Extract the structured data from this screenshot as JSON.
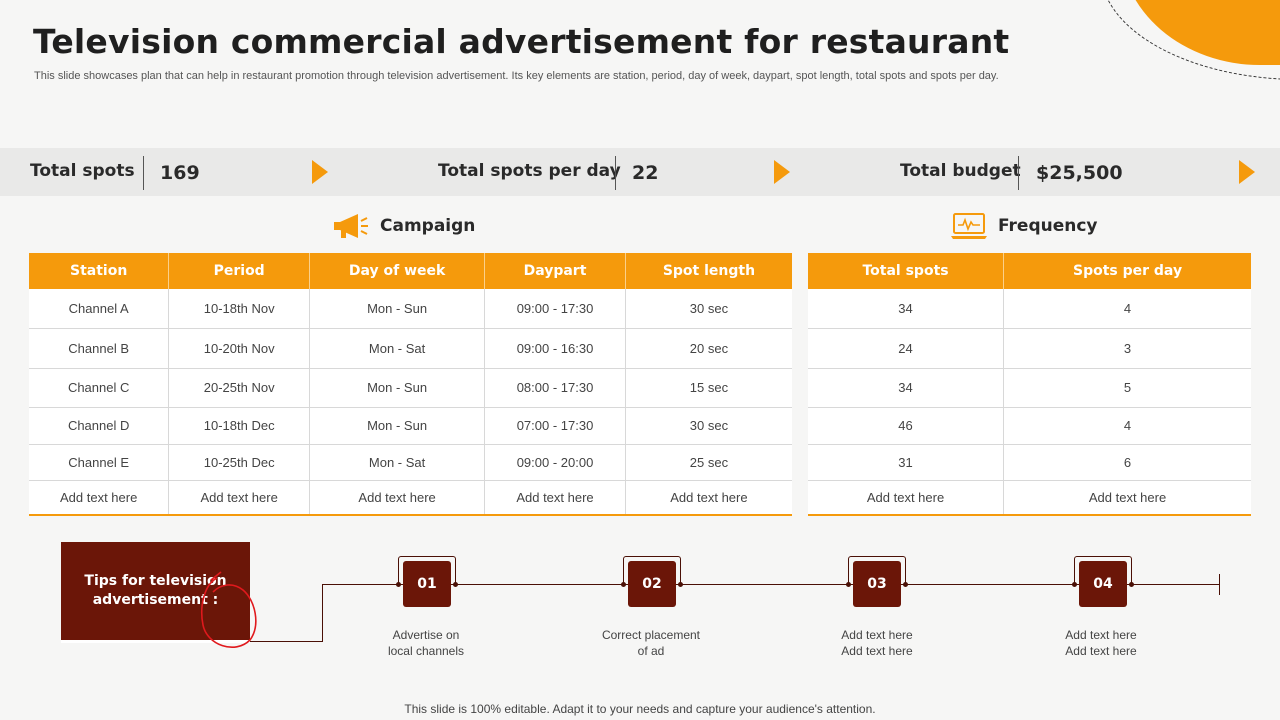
{
  "title": "Television commercial advertisement for restaurant",
  "subtitle": "This slide showcases plan that can help in restaurant promotion through television advertisement. Its key elements are station, period, day of week, daypart,  spot length, total spots and spots per day.",
  "stats": [
    {
      "label": "Total spots",
      "value": "169"
    },
    {
      "label": "Total spots per day",
      "value": "22"
    },
    {
      "label": "Total budget",
      "value": "$25,500"
    }
  ],
  "campaign": {
    "heading": "Campaign",
    "icon": "megaphone-icon",
    "columns": [
      "Station",
      "Period",
      "Day of week",
      "Daypart",
      "Spot length"
    ],
    "rows": [
      [
        "Channel  A",
        "10-18th Nov",
        "Mon - Sun",
        "09:00 - 17:30",
        "30 sec"
      ],
      [
        "Channel  B",
        "10-20th Nov",
        "Mon - Sat",
        "09:00 - 16:30",
        "20 sec"
      ],
      [
        "Channel  C",
        "20-25th Nov",
        "Mon - Sun",
        "08:00 - 17:30",
        "15 sec"
      ],
      [
        "Channel  D",
        "10-18th Dec",
        "Mon - Sun",
        "07:00 - 17:30",
        "30 sec"
      ],
      [
        "Channel  E",
        "10-25th Dec",
        "Mon - Sat",
        "09:00 - 20:00",
        "25 sec"
      ],
      [
        "Add text here",
        "Add text here",
        "Add text here",
        "Add text here",
        "Add text here"
      ]
    ]
  },
  "frequency": {
    "heading": "Frequency",
    "icon": "laptop-chart-icon",
    "columns": [
      "Total spots",
      "Spots per day"
    ],
    "rows": [
      [
        "34",
        "4"
      ],
      [
        "24",
        "3"
      ],
      [
        "34",
        "5"
      ],
      [
        "46",
        "4"
      ],
      [
        "31",
        "6"
      ],
      [
        "Add text here",
        "Add text here"
      ]
    ]
  },
  "tips": {
    "label": "Tips for television advertisement :",
    "steps": [
      {
        "num": "01",
        "text": "Advertise  on\nlocal channels"
      },
      {
        "num": "02",
        "text": "Correct placement\nof ad"
      },
      {
        "num": "03",
        "text": "Add text here\nAdd text here"
      },
      {
        "num": "04",
        "text": "Add text here\nAdd text here"
      }
    ]
  },
  "footer": "This slide is 100% editable. Adapt it to your needs and capture your audience's attention.",
  "colors": {
    "accent": "#f59a0c",
    "dark": "#6b1608"
  }
}
